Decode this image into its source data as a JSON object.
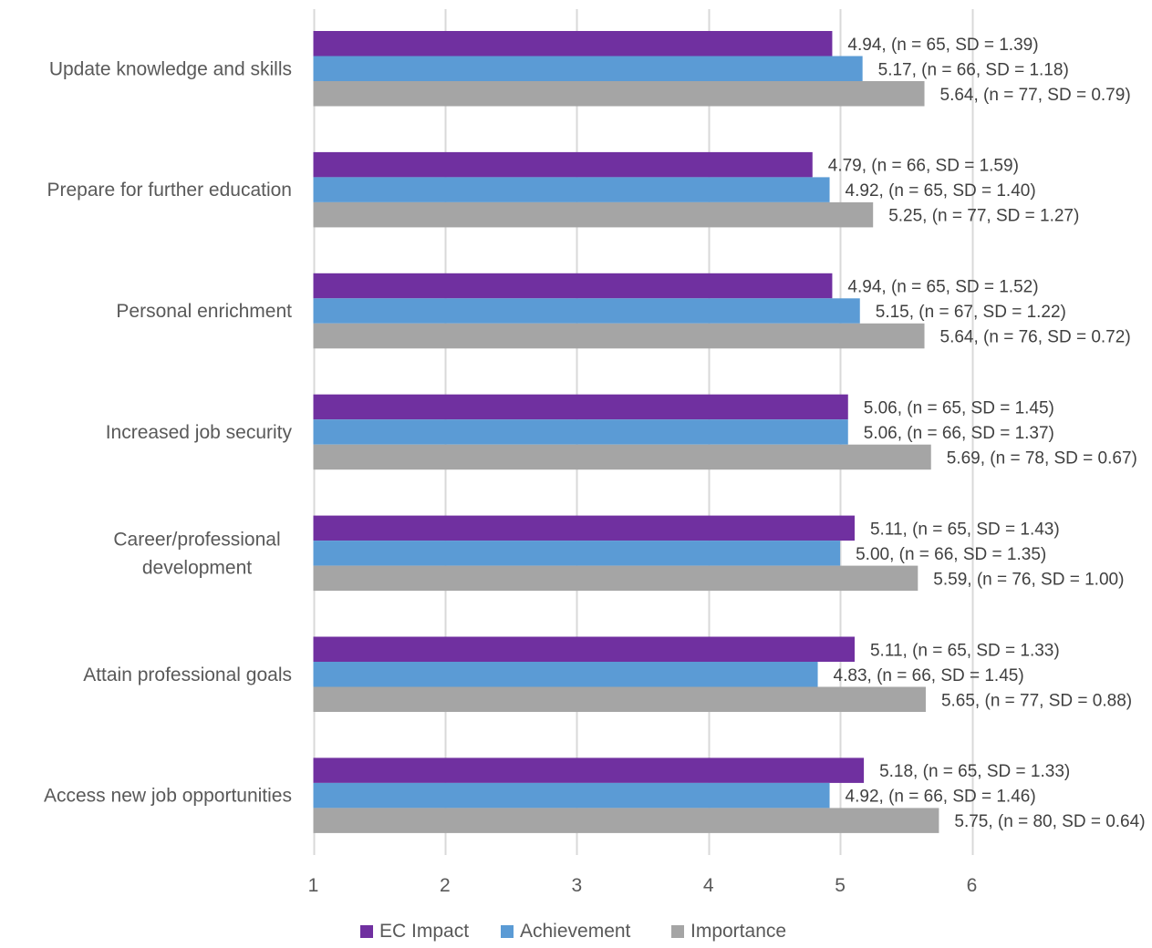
{
  "chart_data": {
    "type": "bar",
    "orientation": "horizontal",
    "categories": [
      "Update knowledge and skills",
      "Prepare for further education",
      "Personal enrichment",
      "Increased job security",
      "Career/professional development",
      "Attain professional goals",
      "Access new job opportunities"
    ],
    "category_lines": [
      [
        "Update knowledge and skills"
      ],
      [
        "Prepare for further education"
      ],
      [
        "Personal enrichment"
      ],
      [
        "Increased job security"
      ],
      [
        "Career/professional",
        "development"
      ],
      [
        "Attain professional goals"
      ],
      [
        "Access new job opportunities"
      ]
    ],
    "series": [
      {
        "name": "EC Impact",
        "color": "#7030A0",
        "values": [
          4.94,
          4.79,
          4.94,
          5.06,
          5.11,
          5.11,
          5.18
        ],
        "labels": [
          "4.94, (n = 65, SD = 1.39)",
          "4.79, (n = 66, SD = 1.59)",
          "4.94, (n = 65, SD = 1.52)",
          "5.06, (n = 65, SD = 1.45)",
          "5.11, (n = 65, SD = 1.43)",
          "5.11, (n = 65, SD = 1.33)",
          "5.18, (n = 65, SD = 1.33)"
        ]
      },
      {
        "name": "Achievement",
        "color": "#5B9BD5",
        "values": [
          5.17,
          4.92,
          5.15,
          5.06,
          5.0,
          4.83,
          4.92
        ],
        "labels": [
          "5.17, (n = 66, SD = 1.18)",
          "4.92, (n = 65, SD = 1.40)",
          "5.15, (n = 67, SD = 1.22)",
          "5.06, (n = 66, SD = 1.37)",
          "5.00, (n = 66, SD = 1.35)",
          "4.83, (n = 66, SD = 1.45)",
          "4.92, (n = 66, SD = 1.46)"
        ]
      },
      {
        "name": "Importance",
        "color": "#A5A5A5",
        "values": [
          5.64,
          5.25,
          5.64,
          5.69,
          5.59,
          5.65,
          5.75
        ],
        "labels": [
          "5.64, (n = 77, SD = 0.79)",
          "5.25, (n = 77, SD = 1.27)",
          "5.64, (n = 76, SD = 0.72)",
          "5.69, (n = 78, SD = 0.67)",
          "5.59, (n = 76, SD = 1.00)",
          "5.65, (n = 77, SD = 0.88)",
          "5.75, (n = 80, SD = 0.64)"
        ]
      }
    ],
    "xlim": [
      1,
      7
    ],
    "xticks": [
      "1",
      "2",
      "3",
      "4",
      "5",
      "6"
    ],
    "grid": true,
    "legend_position": "bottom",
    "title": "",
    "xlabel": "",
    "ylabel": ""
  }
}
